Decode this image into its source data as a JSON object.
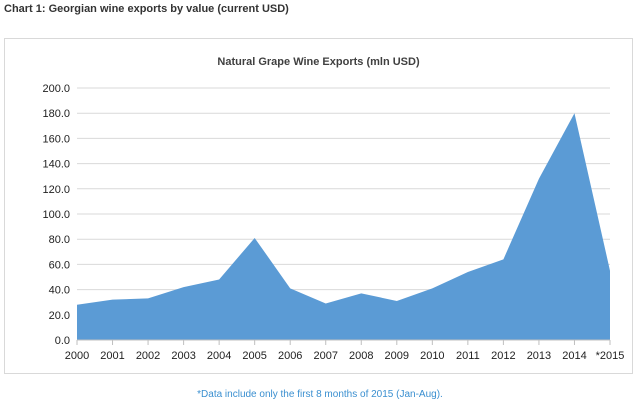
{
  "page": {
    "heading": "Chart 1: Georgian wine exports by value (current USD)",
    "footnote": "*Data include only the first 8 months of 2015 (Jan-Aug)."
  },
  "colors": {
    "area_fill": "#5b9bd5",
    "gridline": "#d9d9d9",
    "axis_line": "#bfbfbf",
    "text": "#222222",
    "footnote_text": "#3a8fd0"
  },
  "chart_data": {
    "type": "area",
    "title": "Natural Grape Wine Exports (mln USD)",
    "xlabel": "",
    "ylabel": "",
    "categories": [
      "2000",
      "2001",
      "2002",
      "2003",
      "2004",
      "2005",
      "2006",
      "2007",
      "2008",
      "2009",
      "2010",
      "2011",
      "2012",
      "2013",
      "2014",
      "*2015"
    ],
    "series": [
      {
        "values": [
          28,
          32,
          33,
          42,
          48,
          81,
          41,
          29,
          37,
          31,
          41,
          54,
          64,
          128,
          180,
          55
        ]
      }
    ],
    "ylim": [
      0,
      200
    ],
    "yticks": [
      "0.0",
      "20.0",
      "40.0",
      "60.0",
      "80.0",
      "100.0",
      "120.0",
      "140.0",
      "160.0",
      "180.0",
      "200.0"
    ],
    "grid": true,
    "legend": "none"
  }
}
